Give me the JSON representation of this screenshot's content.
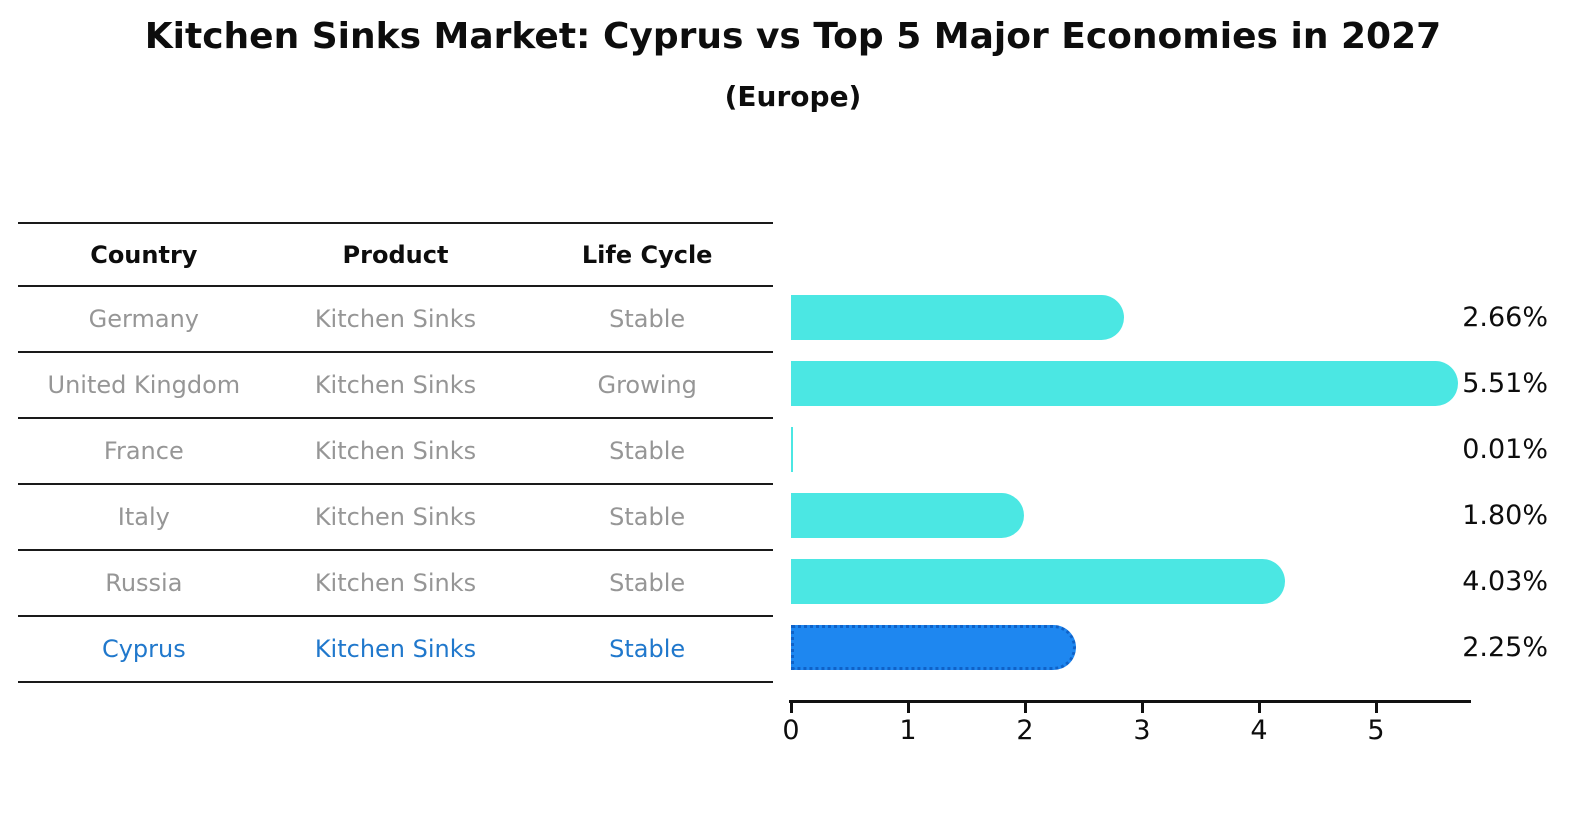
{
  "title": "Kitchen Sinks Market: Cyprus vs Top 5 Major Economies in 2027",
  "subtitle": "(Europe)",
  "colors": {
    "bar_fill": "#4BE7E3",
    "bar_highlight": "#1E87F0",
    "bar_highlight_border": "#0F62C8",
    "muted_text": "#969696",
    "highlight_text": "#2078CC",
    "line_color": "#1A1A1A"
  },
  "table": {
    "headers": [
      "Country",
      "Product",
      "Life Cycle"
    ],
    "rows": [
      {
        "country": "Germany",
        "product": "Kitchen Sinks",
        "life_cycle": "Stable",
        "highlight": false
      },
      {
        "country": "United Kingdom",
        "product": "Kitchen Sinks",
        "life_cycle": "Growing",
        "highlight": false
      },
      {
        "country": "France",
        "product": "Kitchen Sinks",
        "life_cycle": "Stable",
        "highlight": false
      },
      {
        "country": "Italy",
        "product": "Kitchen Sinks",
        "life_cycle": "Stable",
        "highlight": false
      },
      {
        "country": "Russia",
        "product": "Kitchen Sinks",
        "life_cycle": "Stable",
        "highlight": false
      },
      {
        "country": "Cyprus",
        "product": "Kitchen Sinks",
        "life_cycle": "Stable",
        "highlight": true
      }
    ]
  },
  "chart_data": {
    "type": "bar",
    "orientation": "horizontal",
    "title": "Kitchen Sinks Market: Cyprus vs Top 5 Major Economies in 2027",
    "subtitle": "(Europe)",
    "categories": [
      "Germany",
      "United Kingdom",
      "France",
      "Italy",
      "Russia",
      "Cyprus"
    ],
    "values": [
      2.66,
      5.51,
      0.01,
      1.8,
      4.03,
      2.25
    ],
    "value_labels": [
      "2.66%",
      "5.51%",
      "0.01%",
      "1.80%",
      "4.03%",
      "2.25%"
    ],
    "unit": "%",
    "highlight_index": 5,
    "highlight_category": "Cyprus",
    "xlim": [
      0,
      5.79
    ],
    "xticks": [
      0,
      1,
      2,
      3,
      4,
      5
    ],
    "grid": false,
    "legend": false
  }
}
